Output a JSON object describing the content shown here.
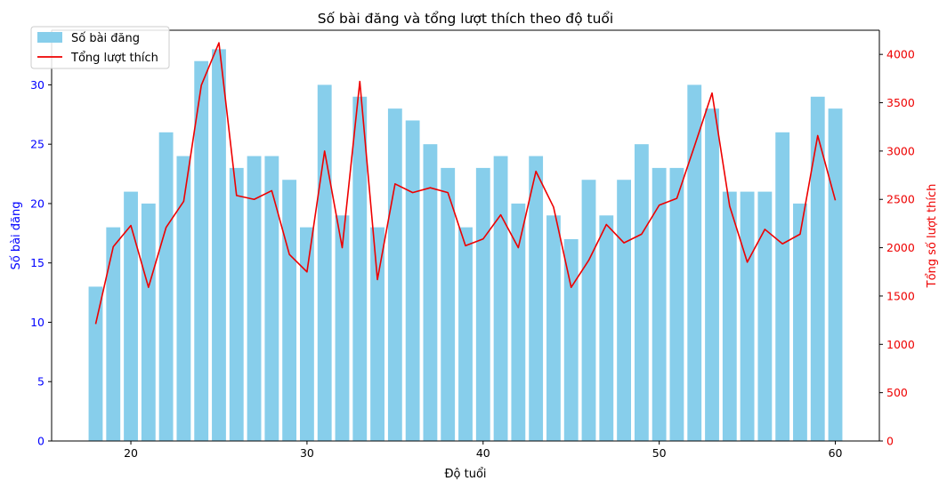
{
  "chart_data": {
    "type": "bar",
    "title": "Số bài đăng và tổng lượt thích theo độ tuổi",
    "xlabel": "Độ tuổi",
    "ylabel_left": "Số bài đăng",
    "ylabel_right": "Tổng số lượt thích",
    "x": [
      18,
      19,
      20,
      21,
      22,
      23,
      24,
      25,
      26,
      27,
      28,
      29,
      30,
      31,
      32,
      33,
      34,
      35,
      36,
      37,
      38,
      39,
      40,
      41,
      42,
      43,
      44,
      45,
      46,
      47,
      48,
      49,
      50,
      51,
      52,
      53,
      54,
      55,
      56,
      57,
      58,
      59,
      60
    ],
    "xlim": [
      15.5,
      62.5
    ],
    "xticks": [
      20,
      30,
      40,
      50,
      60
    ],
    "ylim_left": [
      0,
      34.6
    ],
    "yticks_left": [
      0,
      5,
      10,
      15,
      20,
      25,
      30
    ],
    "ylim_right": [
      0,
      4250
    ],
    "yticks_right": [
      0,
      500,
      1000,
      1500,
      2000,
      2500,
      3000,
      3500,
      4000
    ],
    "series": [
      {
        "name": "Số bài đăng",
        "type": "bar",
        "axis": "left",
        "color": "#87ceeb",
        "values": [
          13,
          18,
          21,
          20,
          26,
          24,
          32,
          33,
          23,
          24,
          24,
          22,
          18,
          30,
          19,
          29,
          18,
          28,
          27,
          25,
          23,
          18,
          23,
          24,
          20,
          24,
          19,
          17,
          22,
          19,
          22,
          25,
          23,
          23,
          30,
          28,
          21,
          21,
          21,
          26,
          20,
          29,
          28
        ]
      },
      {
        "name": "Tổng lượt thích",
        "type": "line",
        "axis": "right",
        "color": "#ee0000",
        "values": [
          1210,
          2010,
          2230,
          1590,
          2210,
          2480,
          3680,
          4120,
          2540,
          2500,
          2590,
          1930,
          1750,
          3000,
          2000,
          3720,
          1670,
          2660,
          2570,
          2620,
          2570,
          2020,
          2090,
          2340,
          2000,
          2790,
          2420,
          1590,
          1870,
          2240,
          2050,
          2140,
          2440,
          2510,
          3050,
          3600,
          2430,
          1850,
          2190,
          2040,
          2140,
          3160,
          2490
        ]
      }
    ],
    "legend_position": "top-left",
    "left_axis_color": "#0000ff",
    "right_axis_color": "#ee0000"
  }
}
